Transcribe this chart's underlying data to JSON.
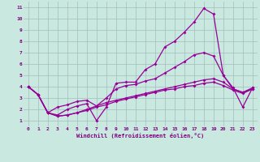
{
  "line1_x": [
    0,
    1,
    2,
    3,
    4,
    5,
    6,
    7,
    8,
    9,
    10,
    11,
    12,
    13,
    14,
    15,
    16,
    17,
    18,
    19,
    20,
    21,
    22,
    23
  ],
  "line1_y": [
    4.0,
    3.3,
    1.7,
    1.5,
    2.0,
    2.3,
    2.5,
    1.0,
    2.2,
    4.3,
    4.4,
    4.4,
    5.5,
    6.0,
    7.5,
    8.0,
    8.8,
    9.7,
    10.9,
    10.4,
    5.0,
    3.9,
    2.2,
    3.9
  ],
  "line2_x": [
    0,
    1,
    2,
    3,
    4,
    5,
    6,
    7,
    8,
    9,
    10,
    11,
    12,
    13,
    14,
    15,
    16,
    17,
    18,
    19,
    20,
    21,
    22,
    23
  ],
  "line2_y": [
    4.0,
    3.3,
    1.7,
    2.2,
    2.4,
    2.7,
    2.8,
    2.3,
    3.0,
    3.8,
    4.1,
    4.2,
    4.5,
    4.7,
    5.2,
    5.7,
    6.2,
    6.8,
    7.0,
    6.7,
    5.0,
    3.8,
    3.5,
    3.9
  ],
  "line3_x": [
    0,
    1,
    2,
    3,
    4,
    5,
    6,
    7,
    8,
    9,
    10,
    11,
    12,
    13,
    14,
    15,
    16,
    17,
    18,
    19,
    20,
    21,
    22,
    23
  ],
  "line3_y": [
    4.0,
    3.3,
    1.7,
    1.4,
    1.5,
    1.7,
    2.0,
    2.3,
    2.6,
    2.8,
    3.0,
    3.2,
    3.4,
    3.6,
    3.8,
    4.0,
    4.2,
    4.4,
    4.6,
    4.7,
    4.4,
    3.8,
    3.5,
    3.8
  ],
  "line4_x": [
    0,
    1,
    2,
    3,
    4,
    5,
    6,
    7,
    8,
    9,
    10,
    11,
    12,
    13,
    14,
    15,
    16,
    17,
    18,
    19,
    20,
    21,
    22,
    23
  ],
  "line4_y": [
    4.0,
    3.3,
    1.7,
    1.4,
    1.5,
    1.7,
    1.9,
    2.2,
    2.4,
    2.7,
    2.9,
    3.1,
    3.3,
    3.5,
    3.7,
    3.8,
    4.0,
    4.1,
    4.3,
    4.4,
    4.1,
    3.7,
    3.4,
    3.8
  ],
  "xlabel": "Windchill (Refroidissement éolien,°C)",
  "xlim": [
    -0.5,
    23.5
  ],
  "ylim": [
    0.5,
    11.5
  ],
  "xticks": [
    0,
    1,
    2,
    3,
    4,
    5,
    6,
    7,
    8,
    9,
    10,
    11,
    12,
    13,
    14,
    15,
    16,
    17,
    18,
    19,
    20,
    21,
    22,
    23
  ],
  "yticks": [
    1,
    2,
    3,
    4,
    5,
    6,
    7,
    8,
    9,
    10,
    11
  ],
  "bg_color": "#c8e8e0",
  "grid_color": "#a0b8b8",
  "line_color": "#990099",
  "xlabel_color": "#800080",
  "tick_color": "#800080",
  "figsize": [
    3.2,
    2.0
  ],
  "dpi": 100
}
